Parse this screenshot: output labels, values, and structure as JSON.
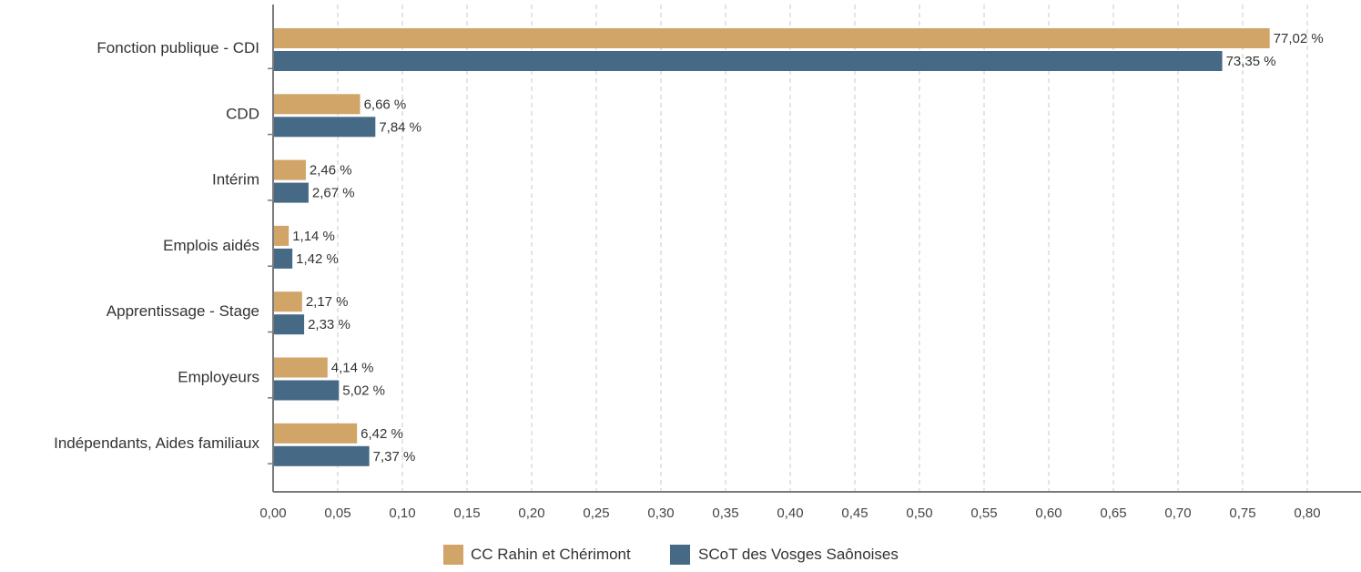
{
  "colors": {
    "series_a": "#d1a467",
    "series_b": "#466a86",
    "grid": "#c9c9c9",
    "axis": "#7a7a7a"
  },
  "chart_data": {
    "type": "bar",
    "orientation": "horizontal",
    "title": "",
    "xlabel": "",
    "ylabel": "",
    "xlim": [
      0,
      0.85
    ],
    "grid": true,
    "legend_position": "bottom",
    "x_ticks": [
      0.0,
      0.05,
      0.1,
      0.15,
      0.2,
      0.25,
      0.3,
      0.35,
      0.4,
      0.45,
      0.5,
      0.55,
      0.6,
      0.65,
      0.7,
      0.75,
      0.8
    ],
    "x_tick_labels": [
      "0,00",
      "0,05",
      "0,10",
      "0,15",
      "0,20",
      "0,25",
      "0,30",
      "0,35",
      "0,40",
      "0,45",
      "0,50",
      "0,55",
      "0,60",
      "0,65",
      "0,70",
      "0,75",
      "0,80"
    ],
    "categories": [
      "Fonction publique - CDI",
      "CDD",
      "Intérim",
      "Emplois aidés",
      "Apprentissage - Stage",
      "Employeurs",
      "Indépendants, Aides familiaux"
    ],
    "series": [
      {
        "name": "CC Rahin et Chérimont",
        "values": [
          0.7702,
          0.0666,
          0.0246,
          0.0114,
          0.0217,
          0.0414,
          0.0642
        ],
        "labels": [
          "77,02 %",
          "6,66 %",
          "2,46 %",
          "1,14 %",
          "2,17 %",
          "4,14 %",
          "6,42 %"
        ]
      },
      {
        "name": "SCoT des Vosges Saônoises",
        "values": [
          0.7335,
          0.0784,
          0.0267,
          0.0142,
          0.0233,
          0.0502,
          0.0737
        ],
        "labels": [
          "73,35 %",
          "7,84 %",
          "2,67 %",
          "1,42 %",
          "2,33 %",
          "5,02 %",
          "7,37 %"
        ]
      }
    ]
  }
}
